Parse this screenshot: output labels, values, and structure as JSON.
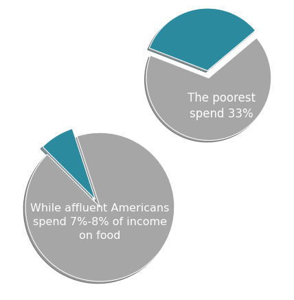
{
  "chart_data": [
    {
      "type": "pie",
      "values": [
        33,
        67
      ],
      "colors": [
        "#2b8a9e",
        "#a6a6a6"
      ],
      "annotations": [
        "The poorest\nspend 33%"
      ]
    },
    {
      "type": "pie",
      "values": [
        7.5,
        92.5
      ],
      "colors": [
        "#2b8a9e",
        "#a6a6a6"
      ],
      "annotations": [
        "While affluent Americans\nspend 7%-8% of income\non food"
      ]
    }
  ]
}
